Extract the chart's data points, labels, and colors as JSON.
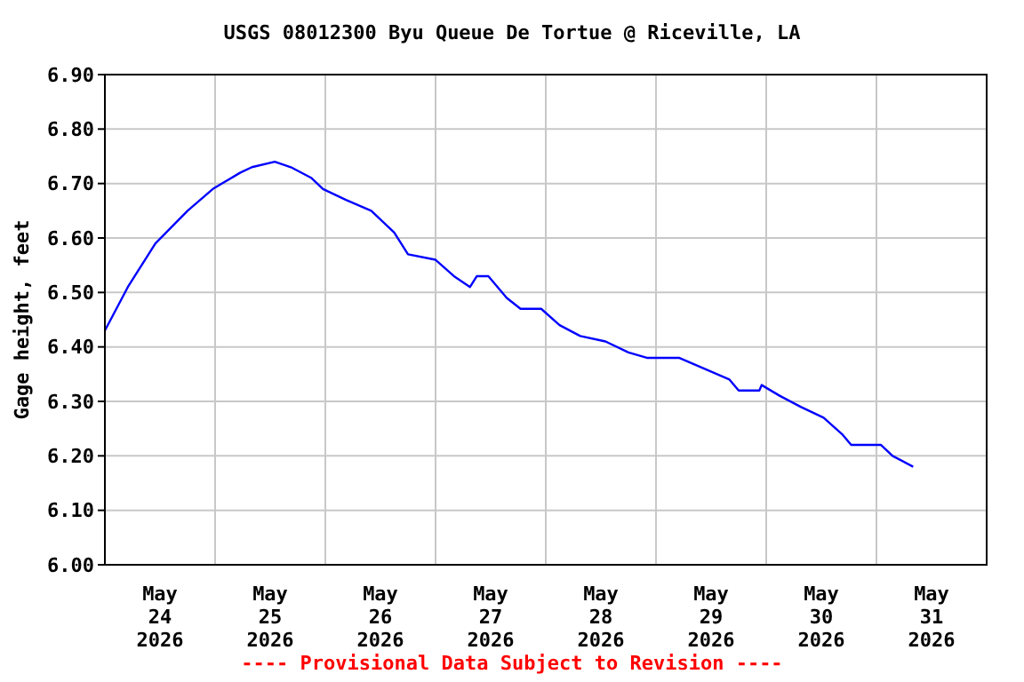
{
  "chart_data": {
    "type": "line",
    "title": "USGS 08012300 Byu Queue De Tortue @ Riceville, LA",
    "ylabel": "Gage height, feet",
    "annotations": [
      "---- Provisional Data Subject to Revision ----"
    ],
    "x": [
      "2026-05-24T00:00",
      "2026-05-24T05:00",
      "2026-05-24T11:00",
      "2026-05-24T18:00",
      "2026-05-24T23:30",
      "2026-05-25T05:30",
      "2026-05-25T08:00",
      "2026-05-25T13:00",
      "2026-05-25T16:30",
      "2026-05-25T21:00",
      "2026-05-25T23:30",
      "2026-05-26T04:30",
      "2026-05-26T10:00",
      "2026-05-26T15:00",
      "2026-05-26T18:00",
      "2026-05-27T00:00",
      "2026-05-27T04:00",
      "2026-05-27T07:30",
      "2026-05-27T09:00",
      "2026-05-27T11:30",
      "2026-05-27T15:30",
      "2026-05-27T18:30",
      "2026-05-27T23:00",
      "2026-05-28T03:00",
      "2026-05-28T07:30",
      "2026-05-28T13:00",
      "2026-05-28T18:00",
      "2026-05-28T22:00",
      "2026-05-29T05:00",
      "2026-05-29T10:30",
      "2026-05-29T16:00",
      "2026-05-29T18:00",
      "2026-05-29T22:30",
      "2026-05-29T23:00",
      "2026-05-30T03:00",
      "2026-05-30T07:30",
      "2026-05-30T12:30",
      "2026-05-30T16:30",
      "2026-05-30T18:30",
      "2026-05-30T21:30",
      "2026-05-31T01:00",
      "2026-05-31T03:30",
      "2026-05-31T08:00"
    ],
    "series": [
      {
        "color": "#0000ff",
        "values": [
          6.43,
          6.51,
          6.59,
          6.65,
          6.69,
          6.72,
          6.73,
          6.74,
          6.73,
          6.71,
          6.69,
          6.67,
          6.65,
          6.61,
          6.57,
          6.56,
          6.53,
          6.51,
          6.53,
          6.53,
          6.49,
          6.47,
          6.47,
          6.44,
          6.42,
          6.41,
          6.39,
          6.38,
          6.38,
          6.36,
          6.34,
          6.32,
          6.32,
          6.33,
          6.31,
          6.29,
          6.27,
          6.24,
          6.22,
          6.22,
          6.22,
          6.2,
          6.18
        ]
      }
    ],
    "xlim": [
      "2026-05-24T00:00",
      "2026-06-01T00:00"
    ],
    "xticks": [
      {
        "value": "2026-05-24T12:00",
        "label": "May 24 2026"
      },
      {
        "value": "2026-05-25T00:00",
        "label": null
      },
      {
        "value": "2026-05-25T12:00",
        "label": "May 25 2026"
      },
      {
        "value": "2026-05-26T00:00",
        "label": null
      },
      {
        "value": "2026-05-26T12:00",
        "label": "May 26 2026"
      },
      {
        "value": "2026-05-27T00:00",
        "label": null
      },
      {
        "value": "2026-05-27T12:00",
        "label": "May 27 2026"
      },
      {
        "value": "2026-05-28T00:00",
        "label": null
      },
      {
        "value": "2026-05-28T12:00",
        "label": "May 28 2026"
      },
      {
        "value": "2026-05-29T00:00",
        "label": null
      },
      {
        "value": "2026-05-29T12:00",
        "label": "May 29 2026"
      },
      {
        "value": "2026-05-30T00:00",
        "label": null
      },
      {
        "value": "2026-05-30T12:00",
        "label": "May 30 2026"
      },
      {
        "value": "2026-05-31T00:00",
        "label": null
      },
      {
        "value": "2026-05-31T12:00",
        "label": "May 31 2026"
      }
    ],
    "ylim": [
      6.0,
      6.9
    ],
    "yticks": [
      {
        "value": 6.0,
        "label": "6.00"
      },
      {
        "value": 6.1,
        "label": "6.10"
      },
      {
        "value": 6.2,
        "label": "6.20"
      },
      {
        "value": 6.3,
        "label": "6.30"
      },
      {
        "value": 6.4,
        "label": "6.40"
      },
      {
        "value": 6.5,
        "label": "6.50"
      },
      {
        "value": 6.6,
        "label": "6.60"
      },
      {
        "value": 6.7,
        "label": "6.70"
      },
      {
        "value": 6.8,
        "label": "6.80"
      },
      {
        "value": 6.9,
        "label": "6.90"
      }
    ],
    "grid": true,
    "legend": false
  }
}
